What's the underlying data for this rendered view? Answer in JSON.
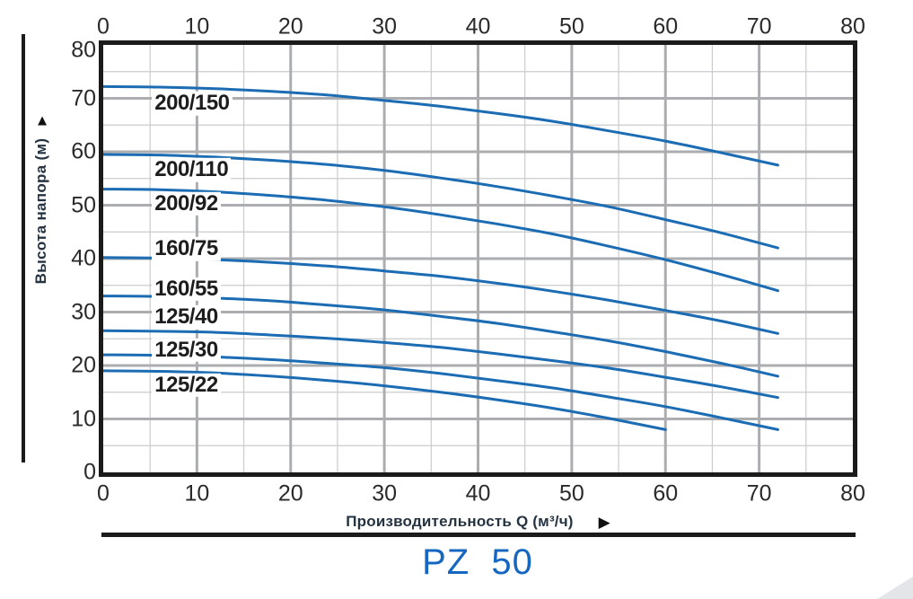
{
  "title": {
    "text": "PZ  50"
  },
  "icons": {
    "up_arrow": "▲",
    "right_arrow": "▶"
  },
  "colors": {
    "curve": "#1b6cb3",
    "grid_major": "#abadb0",
    "grid_minor": "#c9cbce",
    "frame": "#1b1b1b",
    "text_dark": "#1d1d1f",
    "title_navy": "#253341",
    "pz_blue": "#1667c1",
    "corner_gray": "#e3e5e8"
  },
  "chart_data": {
    "type": "line",
    "title": "PZ 50",
    "xlabel": "Производительность Q (м³/ч)",
    "ylabel": "Высота напора (м)",
    "xlim": [
      0,
      80
    ],
    "ylim": [
      0,
      80
    ],
    "x_ticks": [
      0,
      10,
      20,
      30,
      40,
      50,
      60,
      70,
      80
    ],
    "y_ticks": [
      0,
      10,
      20,
      30,
      40,
      50,
      60,
      70,
      80
    ],
    "x_tick_positions": "top and bottom",
    "grid": {
      "major_step": 10,
      "minor_step": 5
    },
    "legend_position": "inline labels on plot",
    "series": [
      {
        "name": "200/150",
        "label_x": 5.2,
        "label_y": 69.0,
        "points": [
          [
            0,
            72.2
          ],
          [
            6,
            72.1
          ],
          [
            12,
            71.8
          ],
          [
            18,
            71.3
          ],
          [
            24,
            70.6
          ],
          [
            30,
            69.6
          ],
          [
            36,
            68.5
          ],
          [
            42,
            67.2
          ],
          [
            48,
            65.7
          ],
          [
            54,
            63.9
          ],
          [
            60,
            62.0
          ],
          [
            66,
            59.8
          ],
          [
            72,
            57.5
          ]
        ]
      },
      {
        "name": "200/110",
        "label_x": 5.2,
        "label_y": 56.6,
        "points": [
          [
            0,
            59.5
          ],
          [
            6,
            59.4
          ],
          [
            12,
            59.0
          ],
          [
            18,
            58.4
          ],
          [
            24,
            57.6
          ],
          [
            30,
            56.5
          ],
          [
            36,
            55.1
          ],
          [
            42,
            53.5
          ],
          [
            48,
            51.7
          ],
          [
            54,
            49.7
          ],
          [
            60,
            47.3
          ],
          [
            66,
            44.8
          ],
          [
            72,
            42.0
          ]
        ]
      },
      {
        "name": "200/92",
        "label_x": 5.2,
        "label_y": 50.3,
        "points": [
          [
            0,
            53.0
          ],
          [
            6,
            52.9
          ],
          [
            12,
            52.5
          ],
          [
            18,
            51.8
          ],
          [
            24,
            50.9
          ],
          [
            30,
            49.7
          ],
          [
            36,
            48.2
          ],
          [
            42,
            46.5
          ],
          [
            48,
            44.6
          ],
          [
            54,
            42.3
          ],
          [
            60,
            39.8
          ],
          [
            66,
            37.0
          ],
          [
            72,
            34.0
          ]
        ]
      },
      {
        "name": "160/75",
        "label_x": 5.2,
        "label_y": 41.8,
        "points": [
          [
            0,
            40.2
          ],
          [
            6,
            40.1
          ],
          [
            12,
            39.8
          ],
          [
            18,
            39.3
          ],
          [
            24,
            38.6
          ],
          [
            30,
            37.7
          ],
          [
            36,
            36.7
          ],
          [
            42,
            35.4
          ],
          [
            48,
            33.9
          ],
          [
            54,
            32.2
          ],
          [
            60,
            30.3
          ],
          [
            66,
            28.3
          ],
          [
            72,
            26.0
          ]
        ]
      },
      {
        "name": "160/55",
        "label_x": 5.2,
        "label_y": 34.3,
        "points": [
          [
            0,
            33.0
          ],
          [
            6,
            32.9
          ],
          [
            12,
            32.6
          ],
          [
            18,
            32.1
          ],
          [
            24,
            31.3
          ],
          [
            30,
            30.4
          ],
          [
            36,
            29.2
          ],
          [
            42,
            27.9
          ],
          [
            48,
            26.3
          ],
          [
            54,
            24.6
          ],
          [
            60,
            22.6
          ],
          [
            66,
            20.4
          ],
          [
            72,
            18.0
          ]
        ]
      },
      {
        "name": "125/40",
        "label_x": 5.2,
        "label_y": 29.0,
        "points": [
          [
            0,
            26.5
          ],
          [
            6,
            26.4
          ],
          [
            12,
            26.2
          ],
          [
            18,
            25.7
          ],
          [
            24,
            25.1
          ],
          [
            30,
            24.3
          ],
          [
            36,
            23.4
          ],
          [
            42,
            22.2
          ],
          [
            48,
            20.9
          ],
          [
            54,
            19.5
          ],
          [
            60,
            17.8
          ],
          [
            66,
            16.0
          ],
          [
            72,
            14.0
          ]
        ]
      },
      {
        "name": "125/30",
        "label_x": 5.2,
        "label_y": 22.9,
        "points": [
          [
            0,
            22.0
          ],
          [
            6,
            21.9
          ],
          [
            12,
            21.6
          ],
          [
            18,
            21.1
          ],
          [
            24,
            20.4
          ],
          [
            30,
            19.6
          ],
          [
            36,
            18.5
          ],
          [
            42,
            17.2
          ],
          [
            48,
            15.8
          ],
          [
            54,
            14.1
          ],
          [
            60,
            12.3
          ],
          [
            66,
            10.2
          ],
          [
            72,
            8.0
          ]
        ]
      },
      {
        "name": "125/22",
        "label_x": 5.2,
        "label_y": 16.3,
        "points": [
          [
            0,
            19.0
          ],
          [
            6,
            18.9
          ],
          [
            12,
            18.6
          ],
          [
            18,
            18.0
          ],
          [
            24,
            17.2
          ],
          [
            30,
            16.2
          ],
          [
            36,
            15.0
          ],
          [
            42,
            13.6
          ],
          [
            48,
            12.0
          ],
          [
            54,
            10.1
          ],
          [
            60,
            8.0
          ]
        ]
      }
    ]
  }
}
